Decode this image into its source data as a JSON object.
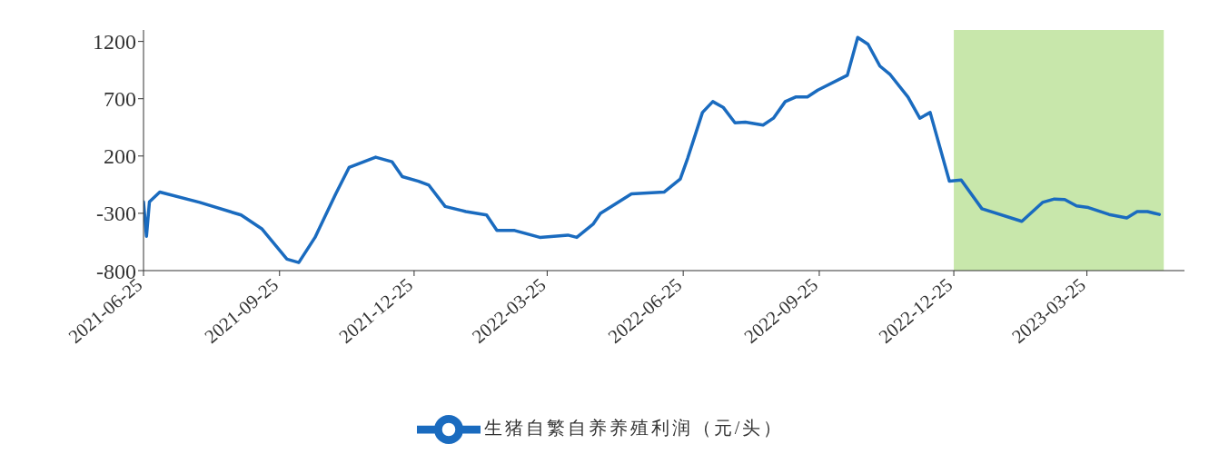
{
  "chart_data": {
    "type": "line",
    "x": [
      "2021-06-25",
      "2021-06-27",
      "2021-06-29",
      "2021-07-06",
      "2021-08-02",
      "2021-08-30",
      "2021-09-13",
      "2021-09-30",
      "2021-10-08",
      "2021-10-19",
      "2021-11-02",
      "2021-11-11",
      "2021-11-29",
      "2021-12-10",
      "2021-12-17",
      "2021-12-28",
      "2022-01-04",
      "2022-01-15",
      "2022-01-29",
      "2022-02-12",
      "2022-02-19",
      "2022-03-03",
      "2022-03-20",
      "2022-04-08",
      "2022-04-14",
      "2022-04-25",
      "2022-04-30",
      "2022-05-21",
      "2022-06-12",
      "2022-06-23",
      "2022-06-28",
      "2022-07-08",
      "2022-07-15",
      "2022-07-22",
      "2022-07-30",
      "2022-08-06",
      "2022-08-18",
      "2022-08-25",
      "2022-09-02",
      "2022-09-09",
      "2022-09-17",
      "2022-09-24",
      "2022-10-14",
      "2022-10-21",
      "2022-10-28",
      "2022-11-05",
      "2022-11-12",
      "2022-11-24",
      "2022-12-02",
      "2022-12-09",
      "2022-12-22",
      "2022-12-30",
      "2023-01-13",
      "2023-02-09",
      "2023-02-23",
      "2023-03-03",
      "2023-03-10",
      "2023-03-18",
      "2023-03-26",
      "2023-04-09",
      "2023-04-21",
      "2023-04-28",
      "2023-05-05",
      "2023-05-13"
    ],
    "series": [
      {
        "name": "生猪自繁自养养殖利润（元/头）",
        "color": "#1a6bbf",
        "values": [
          -200,
          -500,
          -200,
          -115,
          -205,
          -315,
          -435,
          -700,
          -730,
          -510,
          -130,
          100,
          190,
          150,
          20,
          -20,
          -55,
          -240,
          -285,
          -315,
          -450,
          -450,
          -510,
          -490,
          -510,
          -395,
          -300,
          -130,
          -115,
          0,
          180,
          580,
          675,
          625,
          490,
          495,
          470,
          530,
          675,
          715,
          715,
          775,
          905,
          1235,
          1175,
          985,
          910,
          715,
          530,
          580,
          -20,
          -10,
          -260,
          -370,
          -205,
          -175,
          -180,
          -235,
          -250,
          -310,
          -340,
          -285,
          -285,
          -310
        ]
      }
    ],
    "xlim": [
      "2021-06-25",
      "2023-05-30"
    ],
    "xticks": [
      "2021-06-25",
      "2021-09-25",
      "2021-12-25",
      "2022-03-25",
      "2022-06-25",
      "2022-09-25",
      "2022-12-25",
      "2023-03-25"
    ],
    "ylim": [
      -800,
      1300
    ],
    "yticks": [
      -800,
      -300,
      200,
      700,
      1200
    ],
    "bands": [
      {
        "axis": "x",
        "from": "2022-12-25",
        "to": "2023-05-16",
        "color": "#b5df8f"
      }
    ],
    "grid": false,
    "legend": "bottom",
    "marker": "none",
    "line_style": "solid"
  }
}
